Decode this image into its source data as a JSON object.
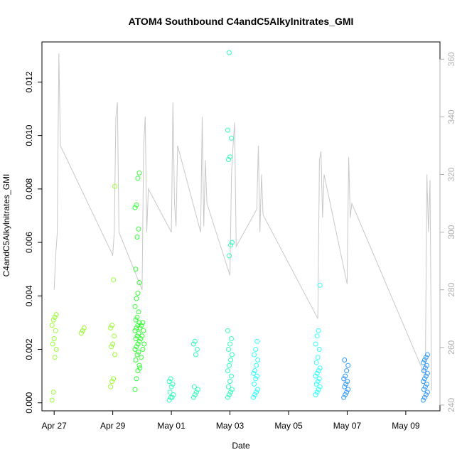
{
  "chart_data": {
    "type": "scatter",
    "title": "ATOM4 Southbound C4andC5Alkylnitrates_GMI",
    "xlabel": "Date",
    "ylabel": "C4andC5Alkylnitrates_GMI",
    "x_tick_labels": [
      "Apr 27",
      "Apr 29",
      "May 01",
      "May 03",
      "May 05",
      "May 07",
      "May 09"
    ],
    "xlim": [
      "2018-04-26T14:00",
      "2018-05-10T04:00"
    ],
    "ylim": [
      -0.0003,
      0.0135
    ],
    "y_ticks": [
      0.0,
      0.002,
      0.004,
      0.006,
      0.008,
      0.01,
      0.012
    ],
    "y_tick_labels": [
      "0.000",
      "0.002",
      "0.004",
      "0.006",
      "0.008",
      "0.010",
      "0.012"
    ],
    "y2_ticks": [
      240,
      260,
      280,
      300,
      320,
      340,
      360
    ],
    "y2_tick_labels": [
      "240",
      "260",
      "280",
      "300",
      "320",
      "340",
      "360"
    ],
    "y2lim": [
      238,
      366
    ],
    "points_color_scale": [
      "#99ff33",
      "#33ff33",
      "#33ffbb",
      "#33ffff",
      "#3399ff"
    ],
    "line_color": "#c8c8c8",
    "points": [
      {
        "t": "2018-04-27T00:00",
        "y": [
          0.0001,
          0.0004,
          0.0017,
          0.002,
          0.0022,
          0.0024,
          0.0027,
          0.0029,
          0.0031,
          0.0032,
          0.0033
        ]
      },
      {
        "t": "2018-04-28T00:00",
        "y": [
          0.0026,
          0.0027,
          0.0028
        ]
      },
      {
        "t": "2018-04-29T00:00",
        "y": [
          0.0006,
          0.0008,
          0.0009,
          0.0018,
          0.0021,
          0.0022,
          0.0025,
          0.0028,
          0.0029,
          0.0046,
          0.0081
        ]
      },
      {
        "t": "2018-04-29T20:00",
        "y": [
          0.0005,
          0.0009,
          0.0012,
          0.0014,
          0.0016,
          0.0018,
          0.0019,
          0.002,
          0.0021,
          0.0022,
          0.0023,
          0.0024,
          0.0025,
          0.0026,
          0.0027,
          0.0028,
          0.0029,
          0.003,
          0.0031,
          0.0032,
          0.0034,
          0.0036,
          0.0039,
          0.0041,
          0.0045,
          0.005,
          0.0062,
          0.0065,
          0.0073,
          0.0074,
          0.0084,
          0.0086
        ]
      },
      {
        "t": "2018-04-30T00:00",
        "y": [
          0.0013,
          0.0017,
          0.002,
          0.0022,
          0.0024,
          0.0025,
          0.0027,
          0.0028,
          0.0029,
          0.003
        ]
      },
      {
        "t": "2018-05-01T00:00",
        "y": [
          0.0001,
          0.0002,
          0.0002,
          0.0003,
          0.0004,
          0.0006,
          0.0007,
          0.0008,
          0.0009
        ]
      },
      {
        "t": "2018-05-01T20:00",
        "y": [
          0.0002,
          0.0003,
          0.0004,
          0.0005,
          0.0006,
          0.0018,
          0.002,
          0.0022,
          0.0023
        ]
      },
      {
        "t": "2018-05-03T00:00",
        "y": [
          0.0002,
          0.0003,
          0.0004,
          0.0005,
          0.0006,
          0.0008,
          0.001,
          0.0012,
          0.0014,
          0.0016,
          0.0018,
          0.002,
          0.0022,
          0.0024,
          0.0027,
          0.0055,
          0.0059,
          0.006,
          0.0091,
          0.0092,
          0.0099,
          0.0102,
          0.0131
        ]
      },
      {
        "t": "2018-05-03T21:00",
        "y": [
          0.0002,
          0.0003,
          0.0004,
          0.0005,
          0.0007,
          0.0009,
          0.001,
          0.0011,
          0.0012,
          0.0014,
          0.0016,
          0.0018,
          0.002,
          0.0023
        ]
      },
      {
        "t": "2018-05-06T00:00",
        "y": [
          0.0003,
          0.0004,
          0.0005,
          0.0006,
          0.0007,
          0.0008,
          0.0009,
          0.001,
          0.0011,
          0.0012,
          0.0013,
          0.0015,
          0.0017,
          0.002,
          0.0022,
          0.0025,
          0.0027,
          0.0044
        ]
      },
      {
        "t": "2018-05-06T23:00",
        "y": [
          0.0002,
          0.0003,
          0.0004,
          0.0005,
          0.0006,
          0.0007,
          0.0008,
          0.0009,
          0.001,
          0.0012,
          0.0014,
          0.0016
        ]
      },
      {
        "t": "2018-05-09T16:00",
        "y": [
          0.0001,
          0.0002,
          0.0003,
          0.0004,
          0.0005,
          0.0006,
          0.0007,
          0.0008,
          0.0009,
          0.001,
          0.0011,
          0.0012,
          0.0013,
          0.0014,
          0.0015,
          0.0016,
          0.0017,
          0.0018
        ]
      }
    ],
    "secondary_line": [
      {
        "t": "2018-04-27T00:00",
        "y2": [
          280,
          292,
          300,
          362,
          330
        ]
      },
      {
        "t": "2018-04-29T00:00",
        "y2": [
          292,
          300,
          340,
          345,
          300
        ]
      },
      {
        "t": "2018-04-30T00:00",
        "y2": [
          280,
          330,
          340,
          300,
          315
        ]
      },
      {
        "t": "2018-05-01T00:00",
        "y2": [
          300,
          345,
          310,
          302,
          330
        ]
      },
      {
        "t": "2018-05-02T00:00",
        "y2": [
          300,
          340,
          302,
          325,
          310
        ]
      },
      {
        "t": "2018-05-03T00:00",
        "y2": [
          285,
          320,
          330,
          338,
          295
        ]
      },
      {
        "t": "2018-05-03T22:00",
        "y2": [
          308,
          330,
          300,
          320,
          306
        ]
      },
      {
        "t": "2018-05-06T00:00",
        "y2": [
          270,
          325,
          328,
          305,
          320
        ]
      },
      {
        "t": "2018-05-07T00:00",
        "y2": [
          282,
          326,
          305,
          310
        ]
      },
      {
        "t": "2018-05-09T16:00",
        "y2": [
          250,
          320,
          300,
          318,
          245
        ]
      }
    ]
  }
}
